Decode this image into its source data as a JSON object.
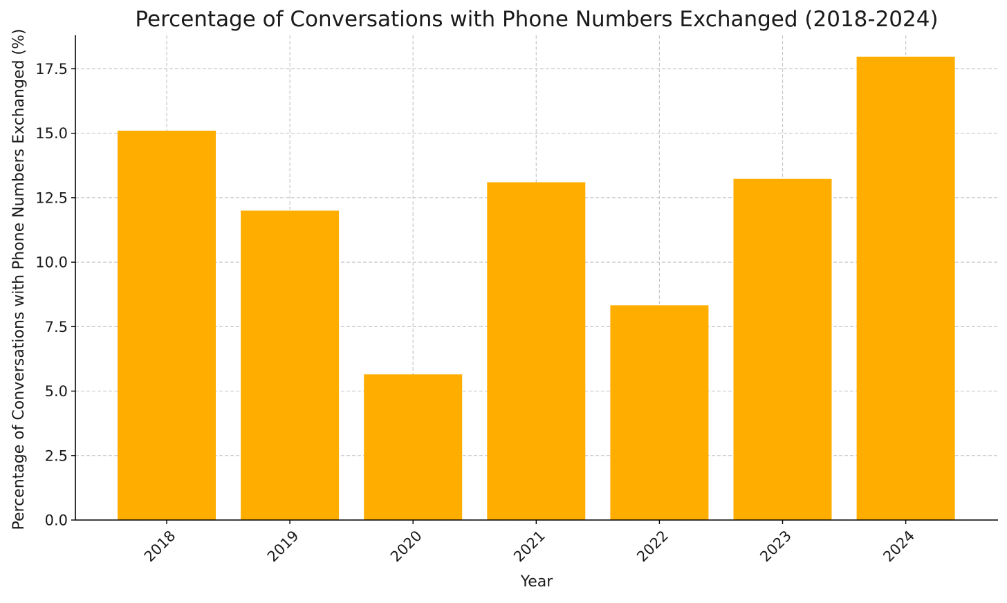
{
  "chart_data": {
    "type": "bar",
    "title": "Percentage of Conversations with Phone Numbers Exchanged (2018-2024)",
    "xlabel": "Year",
    "ylabel": "Percentage of Conversations with Phone Numbers Exchanged (%)",
    "categories": [
      "2018",
      "2019",
      "2020",
      "2021",
      "2022",
      "2023",
      "2024"
    ],
    "values": [
      15.1,
      12.0,
      5.65,
      13.1,
      8.33,
      13.23,
      17.97
    ],
    "ylim": [
      0,
      18.8
    ],
    "yticks": [
      0.0,
      2.5,
      5.0,
      7.5,
      10.0,
      12.5,
      15.0,
      17.5
    ],
    "ytick_labels": [
      "0.0",
      "2.5",
      "5.0",
      "7.5",
      "10.0",
      "12.5",
      "15.0",
      "17.5"
    ],
    "grid": true,
    "bar_color": "#FFAE00",
    "xtick_rotation": "45°"
  }
}
